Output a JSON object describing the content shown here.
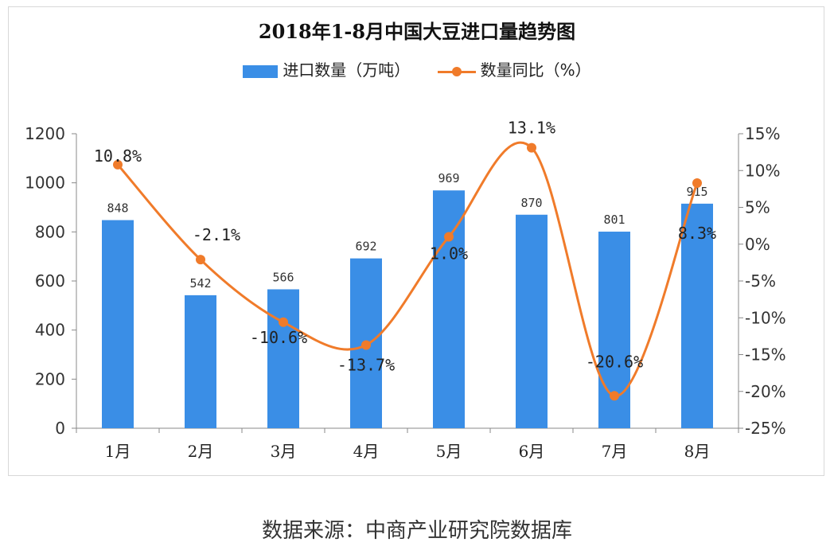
{
  "chart_data": {
    "type": "bar",
    "title": "2018年1-8月中国大豆进口量趋势图",
    "categories": [
      "1月",
      "2月",
      "3月",
      "4月",
      "5月",
      "6月",
      "7月",
      "8月"
    ],
    "series": [
      {
        "name": "进口数量（万吨）",
        "type": "bar",
        "axis": "left",
        "color": "#3a8ee6",
        "values": [
          848,
          542,
          566,
          692,
          969,
          870,
          801,
          915
        ],
        "labels": [
          "848",
          "542",
          "566",
          "692",
          "969",
          "870",
          "801",
          "915"
        ]
      },
      {
        "name": "数量同比（%）",
        "type": "line",
        "axis": "right",
        "color": "#f07b2a",
        "values": [
          10.8,
          -2.1,
          -10.6,
          -13.7,
          1.0,
          13.1,
          -20.6,
          8.3
        ],
        "labels": [
          "10.8%",
          "-2.1%",
          "-10.6%",
          "-13.7%",
          "1.0%",
          "13.1%",
          "-20.6%",
          "8.3%"
        ]
      }
    ],
    "y_left": {
      "min": 0,
      "max": 1200,
      "ticks": [
        0,
        200,
        400,
        600,
        800,
        1000,
        1200
      ]
    },
    "y_right": {
      "min": -25,
      "max": 15,
      "ticks": [
        -25,
        -20,
        -15,
        -10,
        -5,
        0,
        5,
        10,
        15
      ],
      "tick_labels": [
        "-25%",
        "-20%",
        "-15%",
        "-10%",
        "-5%",
        "0%",
        "5%",
        "10%",
        "15%"
      ]
    },
    "grid": false,
    "legend": "top-center"
  },
  "source": "数据来源：中商产业研究院数据库"
}
